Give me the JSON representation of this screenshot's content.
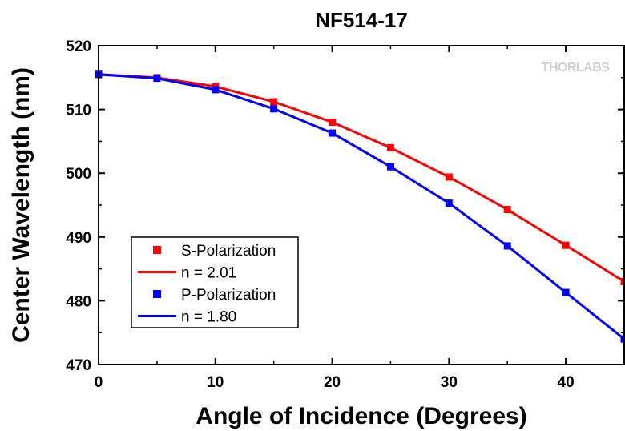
{
  "chart_data": {
    "type": "line",
    "title": "NF514-17",
    "xlabel": "Angle of Incidence (Degrees)",
    "ylabel": "Center Wavelength (nm)",
    "xlim": [
      0,
      45
    ],
    "ylim": [
      470,
      520
    ],
    "xticks": [
      0,
      10,
      20,
      30,
      40
    ],
    "yticks": [
      470,
      480,
      490,
      500,
      510,
      520
    ],
    "watermark": "THORLABS",
    "legend_position": "bottom-left",
    "grid": false,
    "series": [
      {
        "name": "S-Polarization",
        "kind": "markers",
        "color": "#ff0000",
        "x": [
          0,
          5,
          10,
          15,
          20,
          25,
          30,
          35,
          40,
          45
        ],
        "y": [
          515.5,
          515.0,
          513.6,
          511.2,
          508.0,
          504.0,
          499.4,
          494.3,
          488.7,
          483.0
        ]
      },
      {
        "name": "n = 2.01",
        "kind": "line",
        "color": "#ff0000",
        "x": [
          0,
          5,
          10,
          15,
          20,
          25,
          30,
          35,
          40,
          45
        ],
        "y": [
          515.5,
          515.0,
          513.6,
          511.2,
          508.0,
          504.0,
          499.4,
          494.3,
          488.7,
          483.0
        ]
      },
      {
        "name": "P-Polarization",
        "kind": "markers",
        "color": "#0000ff",
        "x": [
          0,
          5,
          10,
          15,
          20,
          25,
          30,
          35,
          40,
          45
        ],
        "y": [
          515.5,
          514.9,
          513.1,
          510.1,
          506.3,
          501.0,
          495.3,
          488.6,
          481.3,
          474.0
        ]
      },
      {
        "name": "n = 1.80",
        "kind": "line",
        "color": "#0000ff",
        "x": [
          0,
          5,
          10,
          15,
          20,
          25,
          30,
          35,
          40,
          45
        ],
        "y": [
          515.5,
          514.9,
          513.1,
          510.1,
          506.3,
          501.0,
          495.3,
          488.6,
          481.3,
          474.0
        ]
      }
    ]
  }
}
